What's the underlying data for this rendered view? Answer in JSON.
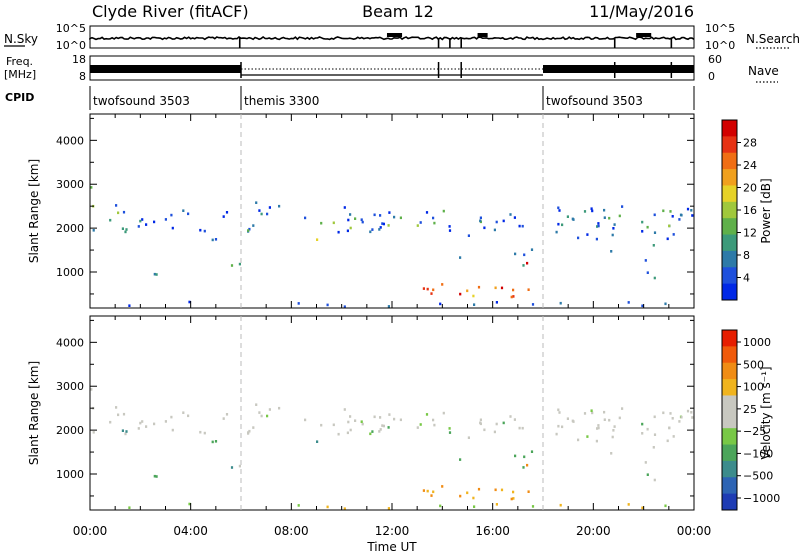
{
  "header": {
    "radar": "Clyde River (fitACF)",
    "beam": "Beam 12",
    "date": "11/May/2016"
  },
  "params": {
    "nsky_label": "N.Sky",
    "nsearch_label": "N.Search",
    "freq_label_line1": "Freq.",
    "freq_label_line2": "[MHz]",
    "nave_label": "Nave",
    "cpid_label": "CPID",
    "left_ticks_row1": [
      "10^5",
      "10^0"
    ],
    "right_ticks_row1": [
      "10^5",
      "10^0"
    ],
    "left_ticks_row2": [
      "18",
      "8"
    ],
    "right_ticks_row2": [
      "60",
      "0"
    ],
    "cpid_segments": [
      {
        "label": "twofsound 3503",
        "start_hour": 0
      },
      {
        "label": "themis 3300",
        "start_hour": 6
      },
      {
        "label": "twofsound 3503",
        "start_hour": 18
      }
    ]
  },
  "chart_data": [
    {
      "type": "heatmap",
      "name": "power",
      "ylabel": "Slant Range [km]",
      "xlim": [
        0,
        24
      ],
      "ylim": [
        180,
        4600
      ],
      "yticks": [
        1000,
        2000,
        3000,
        4000
      ],
      "colorbar": {
        "label": "Power [dB]",
        "ticks": [
          "4",
          "8",
          "12",
          "16",
          "20",
          "24",
          "28"
        ],
        "colors": [
          "#0028e6",
          "#1e50dc",
          "#2d7aa8",
          "#3c9a7a",
          "#5fb04a",
          "#a0c83c",
          "#e6d228",
          "#f0a01e",
          "#f06e14",
          "#e63214",
          "#d20000"
        ]
      }
    },
    {
      "type": "heatmap",
      "name": "velocity",
      "ylabel": "Slant Range [km]",
      "xlabel": "Time UT",
      "xlim": [
        0,
        24
      ],
      "ylim": [
        180,
        4600
      ],
      "yticks": [
        1000,
        2000,
        3000,
        4000
      ],
      "xticks": [
        "00:00",
        "04:00",
        "08:00",
        "12:00",
        "16:00",
        "20:00",
        "00:00"
      ],
      "colorbar": {
        "label": "Velocity [m s⁻¹]",
        "ticks": [
          "1000",
          "500",
          "100",
          "25",
          "−25",
          "−100",
          "−500",
          "−1000"
        ],
        "colors": [
          "#1e3cb4",
          "#2d64b4",
          "#3c8c8c",
          "#4ba55a",
          "#78c846",
          "#c8c8c0",
          "#c8c8c0",
          "#f0b41e",
          "#f08c14",
          "#f05a0a",
          "#e61e00"
        ]
      }
    }
  ]
}
